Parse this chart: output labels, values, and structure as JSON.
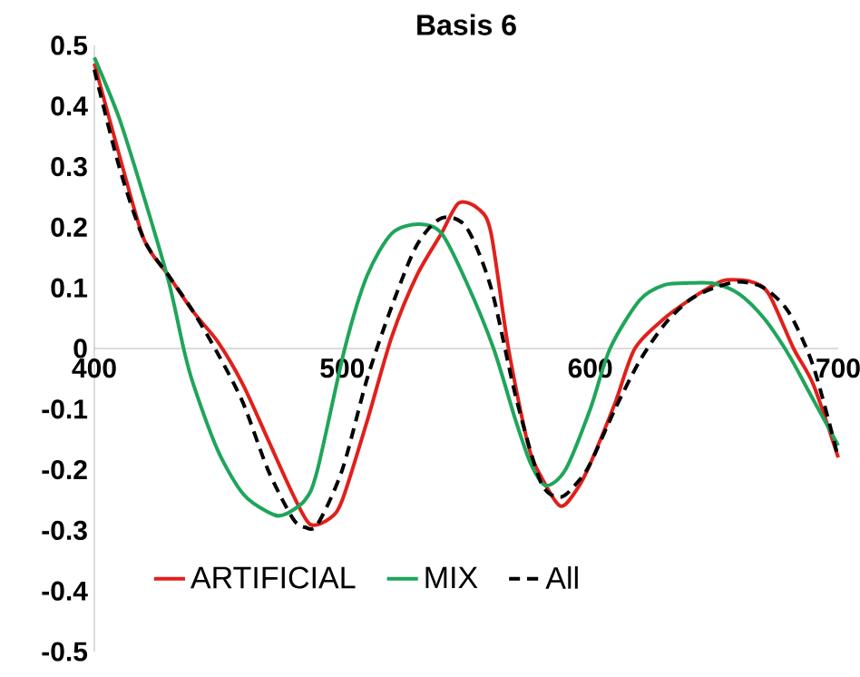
{
  "chart_data": {
    "type": "line",
    "title": "Basis 6",
    "xlim": [
      400,
      700
    ],
    "ylim": [
      -0.5,
      0.5
    ],
    "xticks": [
      400,
      500,
      600,
      700
    ],
    "yticks": [
      -0.5,
      -0.4,
      -0.3,
      -0.2,
      -0.1,
      0,
      0.1,
      0.2,
      0.3,
      0.4,
      0.5
    ],
    "grid": false,
    "legend": "bottom",
    "marker": "none",
    "series": [
      {
        "name": "ARTIFICIAL",
        "color": "#e0201b",
        "line_style": "solid",
        "x": [
          400,
          410,
          420,
          430,
          440,
          450,
          460,
          470,
          480,
          487,
          495,
          500,
          510,
          520,
          530,
          540,
          547,
          555,
          560,
          567,
          575,
          580,
          588,
          595,
          600,
          610,
          618,
          630,
          640,
          650,
          655,
          665,
          672,
          682,
          690,
          700
        ],
        "values": [
          0.47,
          0.32,
          0.18,
          0.12,
          0.06,
          0.01,
          -0.06,
          -0.15,
          -0.24,
          -0.29,
          -0.28,
          -0.25,
          -0.12,
          0.02,
          0.12,
          0.19,
          0.24,
          0.23,
          0.19,
          0.0,
          -0.16,
          -0.21,
          -0.26,
          -0.23,
          -0.19,
          -0.09,
          0.0,
          0.05,
          0.08,
          0.105,
          0.113,
          0.11,
          0.09,
          0.0,
          -0.06,
          -0.18
        ]
      },
      {
        "name": "MIX",
        "color": "#1fa55a",
        "line_style": "solid",
        "x": [
          400,
          410,
          420,
          430,
          436,
          440,
          450,
          460,
          470,
          476,
          485,
          490,
          501,
          510,
          520,
          531,
          540,
          550,
          561,
          570,
          576,
          582,
          590,
          600,
          608,
          620,
          630,
          640,
          650,
          660,
          670,
          680,
          688,
          700
        ],
        "values": [
          0.48,
          0.38,
          0.25,
          0.11,
          0.0,
          -0.06,
          -0.17,
          -0.24,
          -0.27,
          -0.275,
          -0.25,
          -0.2,
          0.0,
          0.12,
          0.19,
          0.205,
          0.19,
          0.11,
          0.0,
          -0.12,
          -0.19,
          -0.226,
          -0.2,
          -0.1,
          0.0,
          0.08,
          0.105,
          0.108,
          0.107,
          0.09,
          0.05,
          -0.01,
          -0.07,
          -0.16
        ]
      },
      {
        "name": "All",
        "color": "#000000",
        "line_style": "dashed",
        "x": [
          400,
          410,
          420,
          430,
          440,
          450,
          460,
          470,
          480,
          485,
          490,
          500,
          510,
          520,
          530,
          540,
          550,
          560,
          570,
          580,
          588,
          595,
          600,
          610,
          620,
          630,
          640,
          650,
          660,
          670,
          680,
          690,
          700
        ],
        "values": [
          0.46,
          0.3,
          0.18,
          0.12,
          0.06,
          -0.01,
          -0.09,
          -0.2,
          -0.28,
          -0.295,
          -0.29,
          -0.2,
          -0.05,
          0.07,
          0.17,
          0.215,
          0.2,
          0.1,
          -0.08,
          -0.22,
          -0.245,
          -0.22,
          -0.19,
          -0.1,
          -0.02,
          0.04,
          0.08,
          0.1,
          0.11,
          0.1,
          0.06,
          -0.03,
          -0.18
        ]
      }
    ]
  }
}
